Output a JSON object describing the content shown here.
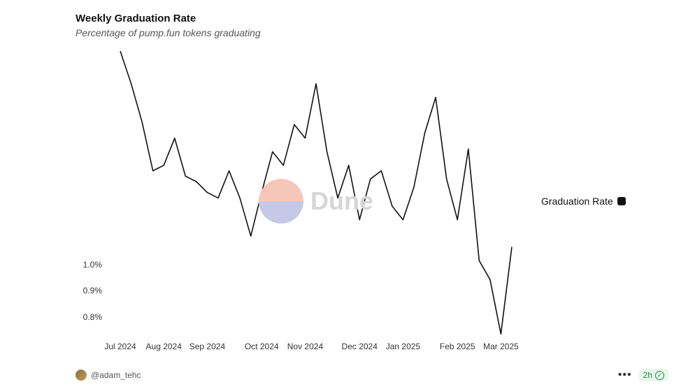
{
  "title": "Weekly Graduation Rate",
  "subtitle": "Percentage of pump.fun tokens graduating",
  "chart": {
    "type": "line",
    "line_color": "#111111",
    "line_width": 1.6,
    "background_color": "#ffffff",
    "label_fontsize": 12,
    "label_color": "#333333",
    "y_axis": {
      "min": 0.77,
      "max": 1.82,
      "ticks": [
        {
          "value": 1.0,
          "label": "1.0%"
        },
        {
          "value": 0.9,
          "label": "0.9%"
        },
        {
          "value": 0.8,
          "label": "0.8%"
        }
      ]
    },
    "x_axis": {
      "ticks": [
        {
          "index": 0,
          "label": "Jul 2024"
        },
        {
          "index": 4,
          "label": "Aug 2024"
        },
        {
          "index": 8,
          "label": "Sep 2024"
        },
        {
          "index": 13,
          "label": "Oct 2024"
        },
        {
          "index": 17,
          "label": "Nov 2024"
        },
        {
          "index": 22,
          "label": "Dec 2024"
        },
        {
          "index": 26,
          "label": "Jan 2025"
        },
        {
          "index": 31,
          "label": "Feb 2025"
        },
        {
          "index": 35,
          "label": "Mar 2025"
        }
      ]
    },
    "series": {
      "name": "Graduation Rate",
      "swatch_color": "#111111",
      "values": [
        1.82,
        1.7,
        1.56,
        1.38,
        1.4,
        1.5,
        1.36,
        1.34,
        1.3,
        1.28,
        1.38,
        1.28,
        1.14,
        1.3,
        1.45,
        1.4,
        1.55,
        1.5,
        1.7,
        1.45,
        1.28,
        1.4,
        1.2,
        1.35,
        1.38,
        1.25,
        1.2,
        1.32,
        1.52,
        1.65,
        1.35,
        1.2,
        1.46,
        1.05,
        0.98,
        0.78,
        1.1
      ]
    }
  },
  "legend": {
    "label": "Graduation Rate"
  },
  "watermark": {
    "text": "Dune",
    "text_color": "#d6d6d6",
    "top_color": "#f6c7b9",
    "bottom_color": "#c6c8e6"
  },
  "footer": {
    "author": "@adam_tehc",
    "freshness": "2h"
  }
}
